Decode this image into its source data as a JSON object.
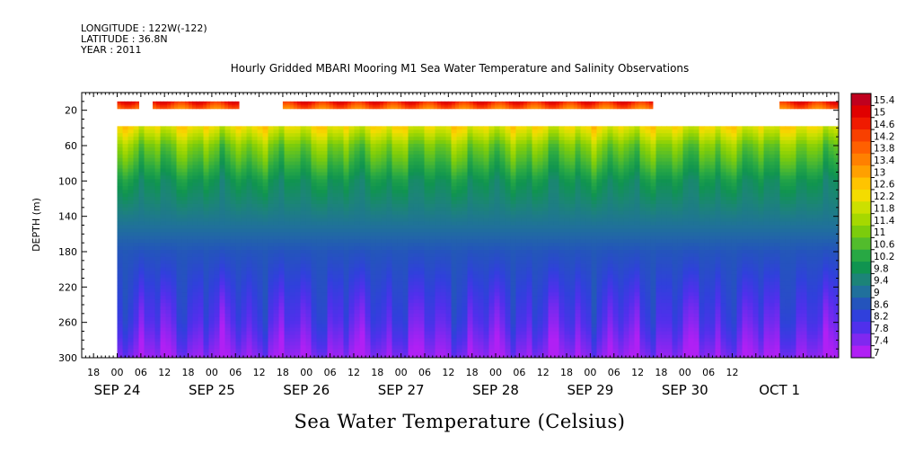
{
  "header": {
    "longitude": "LONGITUDE : 122W(-122)",
    "latitude": "LATITUDE : 36.8N",
    "year": "YEAR : 2011",
    "title": "Hourly Gridded MBARI Mooring M1 Sea Water Temperature and Salinity Observations"
  },
  "chart_data": {
    "type": "heatmap",
    "title": "Hourly Gridded MBARI Mooring M1 Sea Water Temperature and Salinity Observations",
    "xlabel": "Sea Water Temperature (Celsius)",
    "ylabel": "DEPTH (m)",
    "x_units": "hours from SEP 24 00:00, 2011",
    "xlim": [
      -9,
      183
    ],
    "ylim": [
      300,
      0
    ],
    "y_reversed": true,
    "hour_ticks": [
      "18",
      "00",
      "06",
      "12",
      "18",
      "00",
      "06",
      "12",
      "18",
      "00",
      "06",
      "12",
      "18",
      "00",
      "06",
      "12",
      "18",
      "00",
      "06",
      "12",
      "18",
      "00",
      "06",
      "12",
      "18",
      "00",
      "06",
      "12"
    ],
    "hour_tick_values": [
      -6,
      0,
      6,
      12,
      18,
      24,
      30,
      36,
      42,
      48,
      54,
      60,
      66,
      72,
      78,
      84,
      90,
      96,
      102,
      108,
      114,
      120,
      126,
      132,
      138,
      144,
      150,
      156
    ],
    "date_labels": [
      "SEP 24",
      "SEP 25",
      "SEP 26",
      "SEP 27",
      "SEP 28",
      "SEP 29",
      "SEP 30",
      "OCT  1"
    ],
    "date_label_values": [
      0,
      24,
      48,
      72,
      96,
      120,
      144,
      168
    ],
    "y_ticks": [
      "20",
      "60",
      "100",
      "140",
      "180",
      "220",
      "260",
      "300"
    ],
    "y_tick_values": [
      20,
      60,
      100,
      140,
      180,
      220,
      260,
      300
    ],
    "colorbar_levels": [
      "15.4",
      "15",
      "14.6",
      "14.2",
      "13.8",
      "13.4",
      "13",
      "12.6",
      "12.2",
      "11.8",
      "11.4",
      "11",
      "10.6",
      "10.2",
      "9.8",
      "9.4",
      "9",
      "8.6",
      "8.2",
      "7.8",
      "7.4",
      "7"
    ],
    "colorbar_colors": [
      "#c0001e",
      "#e00000",
      "#f01a00",
      "#f84000",
      "#ff6000",
      "#ff8000",
      "#ffa000",
      "#ffc400",
      "#f4dc00",
      "#cce000",
      "#a6d800",
      "#7ccc0c",
      "#52bc2c",
      "#28a844",
      "#109450",
      "#1c8478",
      "#20709c",
      "#2454bc",
      "#3040dc",
      "#5030ec",
      "#8028f0",
      "#b020f4"
    ],
    "surface_layer": {
      "depth_range": [
        10,
        18
      ],
      "temperature_approx": 14.6
    },
    "deep_profile": {
      "depth_range": [
        38,
        300
      ],
      "depths": [
        38,
        60,
        100,
        140,
        180,
        220,
        260,
        300
      ],
      "temperature_approx": [
        12.2,
        11.0,
        9.8,
        9.2,
        8.6,
        8.2,
        7.8,
        7.2
      ]
    },
    "surface_segments_hours": [
      [
        0,
        5
      ],
      [
        9,
        30
      ],
      [
        42,
        135
      ],
      [
        168,
        185
      ]
    ],
    "deep_segments_hours": [
      [
        0,
        185
      ]
    ]
  },
  "colors": {
    "background": "#ffffff",
    "axis": "#000000"
  }
}
